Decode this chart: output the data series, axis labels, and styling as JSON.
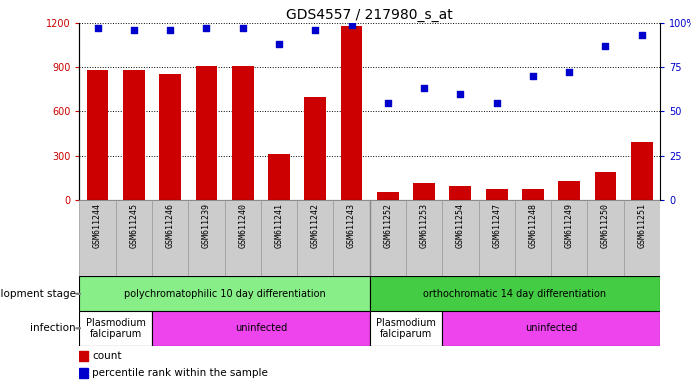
{
  "title": "GDS4557 / 217980_s_at",
  "samples": [
    "GSM611244",
    "GSM611245",
    "GSM611246",
    "GSM611239",
    "GSM611240",
    "GSM611241",
    "GSM611242",
    "GSM611243",
    "GSM611252",
    "GSM611253",
    "GSM611254",
    "GSM611247",
    "GSM611248",
    "GSM611249",
    "GSM611250",
    "GSM611251"
  ],
  "counts": [
    880,
    880,
    855,
    910,
    910,
    310,
    700,
    1180,
    55,
    110,
    90,
    75,
    75,
    130,
    185,
    390
  ],
  "percentiles": [
    97,
    96,
    96,
    97,
    97,
    88,
    96,
    99,
    55,
    63,
    60,
    55,
    70,
    72,
    87,
    93
  ],
  "bar_color": "#cc0000",
  "dot_color": "#0000cc",
  "ylim_left": [
    0,
    1200
  ],
  "ylim_right": [
    0,
    100
  ],
  "yticks_left": [
    0,
    300,
    600,
    900,
    1200
  ],
  "ytick_labels_left": [
    "0",
    "300",
    "600",
    "900",
    "1200"
  ],
  "yticks_right": [
    0,
    25,
    50,
    75,
    100
  ],
  "ytick_labels_right": [
    "0",
    "25",
    "50",
    "75",
    "100%"
  ],
  "dev_stage_groups": [
    {
      "label": "polychromatophilic 10 day differentiation",
      "start": 0,
      "end": 8,
      "color": "#88ee88"
    },
    {
      "label": "orthochromatic 14 day differentiation",
      "start": 8,
      "end": 16,
      "color": "#44cc44"
    }
  ],
  "infection_groups": [
    {
      "label": "Plasmodium\nfalciparum",
      "start": 0,
      "end": 2,
      "color": "#ffffff"
    },
    {
      "label": "uninfected",
      "start": 2,
      "end": 8,
      "color": "#ee44ee"
    },
    {
      "label": "Plasmodium\nfalciparum",
      "start": 8,
      "end": 10,
      "color": "#ffffff"
    },
    {
      "label": "uninfected",
      "start": 10,
      "end": 16,
      "color": "#ee44ee"
    }
  ],
  "legend_count_label": "count",
  "legend_pct_label": "percentile rank within the sample",
  "left_label": "development stage",
  "infection_label": "infection",
  "background_color": "#ffffff",
  "title_fontsize": 10,
  "tick_fontsize": 7,
  "label_fontsize": 8
}
